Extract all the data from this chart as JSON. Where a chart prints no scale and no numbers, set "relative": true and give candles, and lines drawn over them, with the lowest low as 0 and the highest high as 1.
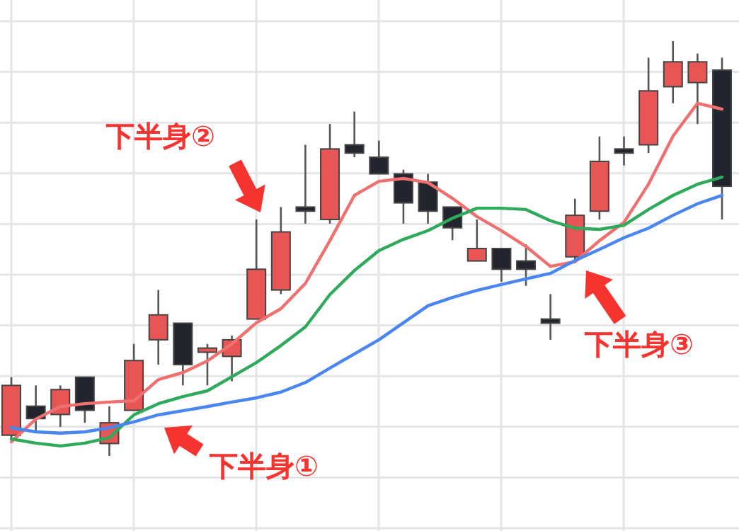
{
  "chart_data": {
    "type": "candlestick",
    "relative": true,
    "grid": true,
    "categories": [
      null,
      null,
      null,
      null,
      null,
      null,
      null,
      null,
      null,
      null,
      null,
      null,
      null,
      null,
      null,
      null,
      null,
      null,
      null,
      null,
      null,
      null,
      null,
      null,
      null,
      null,
      null,
      null,
      null,
      null
    ],
    "ohlc": [
      [
        0.05,
        0.19,
        0.04,
        0.17
      ],
      [
        0.12,
        0.17,
        0.06,
        0.09
      ],
      [
        0.1,
        0.17,
        0.07,
        0.16
      ],
      [
        0.19,
        0.19,
        0.08,
        0.11
      ],
      [
        0.03,
        0.12,
        0,
        0.08
      ],
      [
        0.11,
        0.27,
        0.11,
        0.23
      ],
      [
        0.28,
        0.4,
        0.22,
        0.34
      ],
      [
        0.32,
        0.32,
        0.17,
        0.22
      ],
      [
        0.25,
        0.27,
        0.17,
        0.26
      ],
      [
        0.24,
        0.29,
        0.18,
        0.28
      ],
      [
        0.33,
        0.57,
        0.33,
        0.45
      ],
      [
        0.4,
        0.6,
        0.39,
        0.54
      ],
      [
        0.6,
        0.75,
        0.56,
        0.59
      ],
      [
        0.57,
        0.8,
        0.56,
        0.74
      ],
      [
        0.75,
        0.83,
        0.72,
        0.73
      ],
      [
        0.72,
        0.76,
        0.68,
        0.68
      ],
      [
        0.68,
        0.69,
        0.56,
        0.61
      ],
      [
        0.66,
        0.68,
        0.56,
        0.59
      ],
      [
        0.6,
        0.6,
        0.52,
        0.55
      ],
      [
        0.47,
        0.57,
        0.47,
        0.5
      ],
      [
        0.5,
        0.5,
        0.42,
        0.45
      ],
      [
        0.47,
        0.51,
        0.41,
        0.45
      ],
      [
        0.33,
        0.39,
        0.28,
        0.32
      ],
      [
        0.48,
        0.62,
        0.47,
        0.58
      ],
      [
        0.59,
        0.77,
        0.57,
        0.71
      ],
      [
        0.74,
        0.77,
        0.7,
        0.73
      ],
      [
        0.75,
        0.96,
        0.73,
        0.88
      ],
      [
        0.89,
        1,
        0.85,
        0.95
      ],
      [
        0.9,
        0.97,
        0.8,
        0.95
      ],
      [
        0.93,
        0.96,
        0.57,
        0.65
      ]
    ],
    "colors": [
      "#e85555",
      "#22252e",
      "#e85555",
      "#22252e",
      "#e85555",
      "#e85555",
      "#e85555",
      "#22252e",
      "#e85555",
      "#e85555",
      "#e85555",
      "#e85555",
      "#22252e",
      "#e85555",
      "#22252e",
      "#22252e",
      "#22252e",
      "#22252e",
      "#22252e",
      "#e85555",
      "#22252e",
      "#22252e",
      "#22252e",
      "#e85555",
      "#e85555",
      "#22252e",
      "#e85555",
      "#e85555",
      "#e85555",
      "#22252e"
    ],
    "series": [
      {
        "type": "line",
        "color": "#f07070",
        "values": [
          0.034,
          0.089,
          0.119,
          0.126,
          0.13,
          0.133,
          0.184,
          0.201,
          0.229,
          0.27,
          0.321,
          0.355,
          0.416,
          0.519,
          0.628,
          0.662,
          0.669,
          0.659,
          0.621,
          0.577,
          0.543,
          0.505,
          0.457,
          0.468,
          0.519,
          0.563,
          0.655,
          0.771,
          0.85,
          0.836
        ]
      },
      {
        "type": "line",
        "color": "#2eaa5a",
        "values": [
          0.041,
          0.031,
          0.024,
          0.031,
          0.044,
          0.099,
          0.126,
          0.143,
          0.157,
          0.191,
          0.225,
          0.266,
          0.311,
          0.389,
          0.447,
          0.495,
          0.522,
          0.543,
          0.573,
          0.597,
          0.597,
          0.594,
          0.567,
          0.549,
          0.546,
          0.556,
          0.594,
          0.628,
          0.655,
          0.672
        ]
      },
      {
        "type": "line",
        "color": "#4a86f0",
        "values": [
          0.068,
          0.058,
          0.055,
          0.058,
          0.068,
          0.082,
          0.099,
          0.109,
          0.119,
          0.13,
          0.14,
          0.154,
          0.177,
          0.212,
          0.246,
          0.28,
          0.321,
          0.362,
          0.382,
          0.399,
          0.413,
          0.427,
          0.44,
          0.471,
          0.498,
          0.526,
          0.549,
          0.58,
          0.608,
          0.628
        ]
      }
    ],
    "marker": "none",
    "line_style": "solid",
    "annotations": [
      "下半身①",
      "下半身②",
      "下半身③"
    ]
  }
}
